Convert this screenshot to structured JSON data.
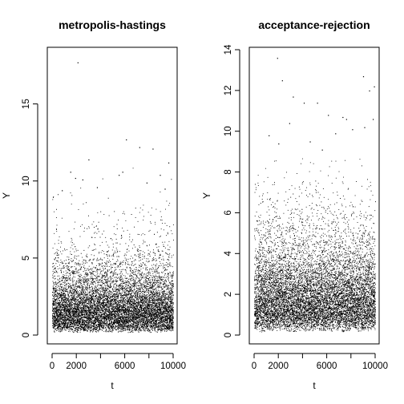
{
  "chart_data": [
    {
      "type": "scatter",
      "title": "metropolis-hastings",
      "xlabel": "t",
      "ylabel": "Y",
      "xlim": [
        0,
        10000
      ],
      "ylim": [
        0,
        18
      ],
      "x_ticks": [
        0,
        2000,
        6000,
        10000
      ],
      "y_ticks": [
        0,
        5,
        10,
        15
      ],
      "grid": false,
      "point_style": "small black dots",
      "n_points": 10000,
      "series": [
        {
          "name": "",
          "summary": "dense band of points between about 0.2 and 4, thinning upward; sparse outliers up to about 17.7",
          "outliers": [
            {
              "x": 2100,
              "y": 17.7
            },
            {
              "x": 6100,
              "y": 12.7
            },
            {
              "x": 7200,
              "y": 12.2
            },
            {
              "x": 8300,
              "y": 12.1
            },
            {
              "x": 3000,
              "y": 11.4
            },
            {
              "x": 9600,
              "y": 11.2
            },
            {
              "x": 1500,
              "y": 10.6
            },
            {
              "x": 5800,
              "y": 10.6
            },
            {
              "x": 5500,
              "y": 10.4
            },
            {
              "x": 8900,
              "y": 10.4
            },
            {
              "x": 1900,
              "y": 10.2
            },
            {
              "x": 2500,
              "y": 10.1
            },
            {
              "x": 7800,
              "y": 9.9
            },
            {
              "x": 3700,
              "y": 9.6
            },
            {
              "x": 800,
              "y": 9.4
            },
            {
              "x": 9300,
              "y": 9.5
            }
          ]
        }
      ]
    },
    {
      "type": "scatter",
      "title": "acceptance-rejection",
      "xlabel": "t",
      "ylabel": "Y",
      "xlim": [
        0,
        10000
      ],
      "ylim": [
        0,
        14
      ],
      "x_ticks": [
        0,
        2000,
        6000,
        10000
      ],
      "y_ticks": [
        0,
        2,
        4,
        6,
        8,
        10,
        12,
        14
      ],
      "grid": false,
      "point_style": "small black dots",
      "n_points": 10000,
      "series": [
        {
          "name": "",
          "summary": "dense band of points between about 0.3 and 4, thinning upward; sparse outliers up to about 13.6",
          "outliers": [
            {
              "x": 1900,
              "y": 13.6
            },
            {
              "x": 9000,
              "y": 12.7
            },
            {
              "x": 2300,
              "y": 12.5
            },
            {
              "x": 9900,
              "y": 12.2
            },
            {
              "x": 9500,
              "y": 12.0
            },
            {
              "x": 3200,
              "y": 11.7
            },
            {
              "x": 4100,
              "y": 11.4
            },
            {
              "x": 5200,
              "y": 11.4
            },
            {
              "x": 6100,
              "y": 10.8
            },
            {
              "x": 7300,
              "y": 10.7
            },
            {
              "x": 7600,
              "y": 10.6
            },
            {
              "x": 2900,
              "y": 10.4
            },
            {
              "x": 9800,
              "y": 10.6
            },
            {
              "x": 9100,
              "y": 10.2
            },
            {
              "x": 8100,
              "y": 10.1
            },
            {
              "x": 6700,
              "y": 9.9
            },
            {
              "x": 1200,
              "y": 9.8
            },
            {
              "x": 4600,
              "y": 9.5
            },
            {
              "x": 2000,
              "y": 9.4
            },
            {
              "x": 5600,
              "y": 9.1
            }
          ]
        }
      ]
    }
  ]
}
